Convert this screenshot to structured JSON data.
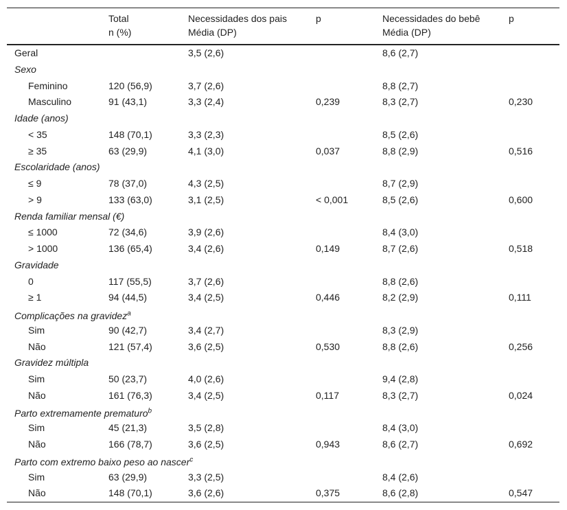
{
  "header": {
    "total": [
      "Total",
      "n (%)"
    ],
    "pais": [
      "Necessidades dos pais",
      "Média (DP)"
    ],
    "p_pais": [
      "p"
    ],
    "bebe": [
      "Necessidades do bebê",
      "Média (DP)"
    ],
    "p_bebe": [
      "p"
    ]
  },
  "rows": [
    {
      "label": "Geral",
      "pais": "3,5 (2,6)",
      "bebe": "8,6 (2,7)"
    },
    {
      "group": "Sexo",
      "items": [
        {
          "label": "Feminino",
          "total": "120 (56,9)",
          "pais": "3,7 (2,6)",
          "bebe": "8,8 (2,7)"
        },
        {
          "label": "Masculino",
          "total": "91 (43,1)",
          "pais": "3,3 (2,4)",
          "p_pais": "0,239",
          "bebe": "8,3 (2,7)",
          "p_bebe": "0,230"
        }
      ]
    },
    {
      "group": "Idade (anos)",
      "items": [
        {
          "label": "< 35",
          "total": "148 (70,1)",
          "pais": "3,3 (2,3)",
          "bebe": "8,5 (2,6)"
        },
        {
          "label": "≥ 35",
          "total": "63 (29,9)",
          "pais": "4,1 (3,0)",
          "p_pais": "0,037",
          "bebe": "8,8 (2,9)",
          "p_bebe": "0,516"
        }
      ]
    },
    {
      "group": "Escolaridade (anos)",
      "items": [
        {
          "label": "≤ 9",
          "total": "78 (37,0)",
          "pais": "4,3 (2,5)",
          "bebe": "8,7 (2,9)"
        },
        {
          "label": "> 9",
          "total": "133 (63,0)",
          "pais": "3,1 (2,5)",
          "p_pais": "< 0,001",
          "bebe": "8,5 (2,6)",
          "p_bebe": "0,600"
        }
      ]
    },
    {
      "group": "Renda familiar mensal (€)",
      "items": [
        {
          "label": "≤ 1000",
          "total": "72 (34,6)",
          "pais": "3,9 (2,6)",
          "bebe": "8,4 (3,0)"
        },
        {
          "label": "> 1000",
          "total": "136 (65,4)",
          "pais": "3,4 (2,6)",
          "p_pais": "0,149",
          "bebe": "8,7 (2,6)",
          "p_bebe": "0,518"
        }
      ]
    },
    {
      "group": "Gravidade",
      "items": [
        {
          "label": "0",
          "total": "117 (55,5)",
          "pais": "3,7 (2,6)",
          "bebe": "8,8 (2,6)"
        },
        {
          "label": "≥ 1",
          "total": "94 (44,5)",
          "pais": "3,4 (2,5)",
          "p_pais": "0,446",
          "bebe": "8,2 (2,9)",
          "p_bebe": "0,111"
        }
      ]
    },
    {
      "group": "Complicações na gravidez",
      "sup": "a",
      "items": [
        {
          "label": "Sim",
          "total": "90 (42,7)",
          "pais": "3,4 (2,7)",
          "bebe": "8,3 (2,9)"
        },
        {
          "label": "Não",
          "total": "121 (57,4)",
          "pais": "3,6 (2,5)",
          "p_pais": "0,530",
          "bebe": "8,8 (2,6)",
          "p_bebe": "0,256"
        }
      ]
    },
    {
      "group": "Gravidez múltipla",
      "items": [
        {
          "label": "Sim",
          "total": "50 (23,7)",
          "pais": "4,0 (2,6)",
          "bebe": "9,4 (2,8)"
        },
        {
          "label": "Não",
          "total": "161 (76,3)",
          "pais": "3,4 (2,5)",
          "p_pais": "0,117",
          "bebe": "8,3 (2,7)",
          "p_bebe": "0,024"
        }
      ]
    },
    {
      "group": "Parto extremamente prematuro",
      "sup": "b",
      "items": [
        {
          "label": "Sim",
          "total": "45 (21,3)",
          "pais": "3,5 (2,8)",
          "bebe": "8,4 (3,0)"
        },
        {
          "label": "Não",
          "total": "166 (78,7)",
          "pais": "3,6 (2,5)",
          "p_pais": "0,943",
          "bebe": "8,6 (2,7)",
          "p_bebe": "0,692"
        }
      ]
    },
    {
      "group": "Parto com extremo baixo peso ao nascer",
      "sup": "c",
      "items": [
        {
          "label": "Sim",
          "total": "63 (29,9)",
          "pais": "3,3 (2,5)",
          "bebe": "8,4 (2,6)"
        },
        {
          "label": "Não",
          "total": "148 (70,1)",
          "pais": "3,6 (2,6)",
          "p_pais": "0,375",
          "bebe": "8,6 (2,8)",
          "p_bebe": "0,547"
        }
      ]
    }
  ]
}
